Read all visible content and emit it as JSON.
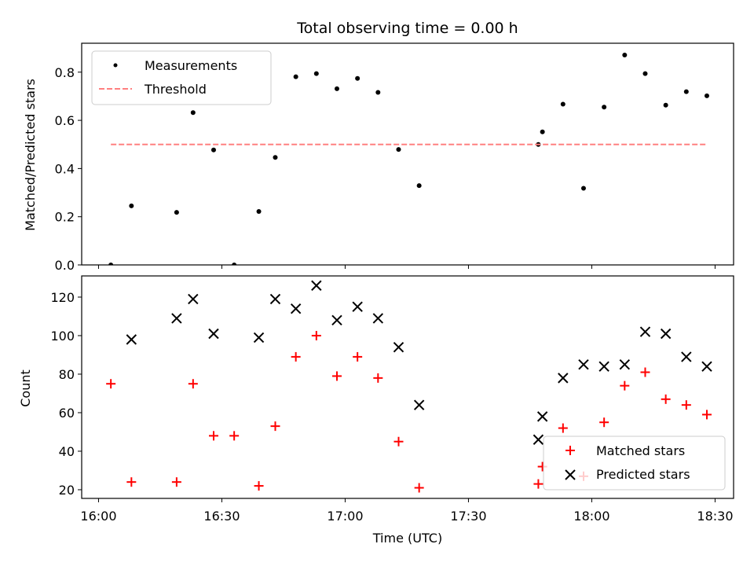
{
  "chart_data": [
    {
      "type": "scatter",
      "title": "Total observing time = 0.00 h",
      "xlabel": "",
      "ylabel": "Matched/Predicted stars",
      "ylim": [
        0,
        0.92
      ],
      "yticks": [
        0.0,
        0.2,
        0.4,
        0.6,
        0.8
      ],
      "ytick_labels": [
        "0.0",
        "0.2",
        "0.4",
        "0.6",
        "0.8"
      ],
      "legend_position": "top-left",
      "series": [
        {
          "name": "Measurements",
          "marker": "dot",
          "color": "#000000",
          "points": [
            [
              "16:03",
              0.0
            ],
            [
              "16:08",
              0.245
            ],
            [
              "16:19",
              0.218
            ],
            [
              "16:23",
              0.632
            ],
            [
              "16:28",
              0.477
            ],
            [
              "16:33",
              0.0
            ],
            [
              "16:39",
              0.222
            ],
            [
              "16:43",
              0.446
            ],
            [
              "16:48",
              0.781
            ],
            [
              "16:53",
              0.794
            ],
            [
              "16:58",
              0.731
            ],
            [
              "17:03",
              0.774
            ],
            [
              "17:08",
              0.716
            ],
            [
              "17:13",
              0.479
            ],
            [
              "17:18",
              0.329
            ],
            [
              "17:47",
              0.5
            ],
            [
              "17:48",
              0.552
            ],
            [
              "17:53",
              0.667
            ],
            [
              "17:58",
              0.318
            ],
            [
              "18:03",
              0.655
            ],
            [
              "18:08",
              0.871
            ],
            [
              "18:13",
              0.794
            ],
            [
              "18:18",
              0.663
            ],
            [
              "18:23",
              0.719
            ],
            [
              "18:28",
              0.702
            ]
          ]
        },
        {
          "name": "Threshold",
          "line": "dashed",
          "color": "#ff8080",
          "points": [
            [
              "16:03",
              0.5
            ],
            [
              "18:28",
              0.5
            ]
          ]
        }
      ]
    },
    {
      "type": "scatter",
      "xlabel": "Time (UTC)",
      "ylabel": "Count",
      "ylim": [
        15.5,
        131
      ],
      "yticks": [
        20,
        40,
        60,
        80,
        100,
        120
      ],
      "ytick_labels": [
        "20",
        "40",
        "60",
        "80",
        "100",
        "120"
      ],
      "x_tick_labels": [
        "16:00",
        "16:30",
        "17:00",
        "17:30",
        "18:00",
        "18:30"
      ],
      "x_tick_times": [
        "16:00",
        "16:30",
        "17:00",
        "17:30",
        "18:00",
        "18:30"
      ],
      "legend_position": "bottom-right",
      "series": [
        {
          "name": "Matched stars",
          "marker": "plus",
          "color": "#ff0000",
          "points": [
            [
              "16:03",
              75
            ],
            [
              "16:08",
              24
            ],
            [
              "16:19",
              24
            ],
            [
              "16:23",
              75
            ],
            [
              "16:28",
              48
            ],
            [
              "16:33",
              48
            ],
            [
              "16:39",
              22
            ],
            [
              "16:43",
              53
            ],
            [
              "16:48",
              89
            ],
            [
              "16:53",
              100
            ],
            [
              "16:58",
              79
            ],
            [
              "17:03",
              89
            ],
            [
              "17:08",
              78
            ],
            [
              "17:13",
              45
            ],
            [
              "17:18",
              21
            ],
            [
              "17:47",
              23
            ],
            [
              "17:48",
              32
            ],
            [
              "17:53",
              52
            ],
            [
              "17:58",
              27
            ],
            [
              "18:03",
              55
            ],
            [
              "18:08",
              74
            ],
            [
              "18:13",
              81
            ],
            [
              "18:18",
              67
            ],
            [
              "18:23",
              64
            ],
            [
              "18:28",
              59
            ]
          ]
        },
        {
          "name": "Predicted stars",
          "marker": "x",
          "color": "#000000",
          "points": [
            [
              "16:08",
              98
            ],
            [
              "16:19",
              109
            ],
            [
              "16:23",
              119
            ],
            [
              "16:28",
              101
            ],
            [
              "16:39",
              99
            ],
            [
              "16:43",
              119
            ],
            [
              "16:48",
              114
            ],
            [
              "16:53",
              126
            ],
            [
              "16:58",
              108
            ],
            [
              "17:03",
              115
            ],
            [
              "17:08",
              109
            ],
            [
              "17:13",
              94
            ],
            [
              "17:18",
              64
            ],
            [
              "17:47",
              46
            ],
            [
              "17:48",
              58
            ],
            [
              "17:53",
              78
            ],
            [
              "17:58",
              85
            ],
            [
              "18:03",
              84
            ],
            [
              "18:08",
              85
            ],
            [
              "18:13",
              102
            ],
            [
              "18:18",
              101
            ],
            [
              "18:23",
              89
            ],
            [
              "18:28",
              84
            ]
          ]
        }
      ]
    }
  ]
}
